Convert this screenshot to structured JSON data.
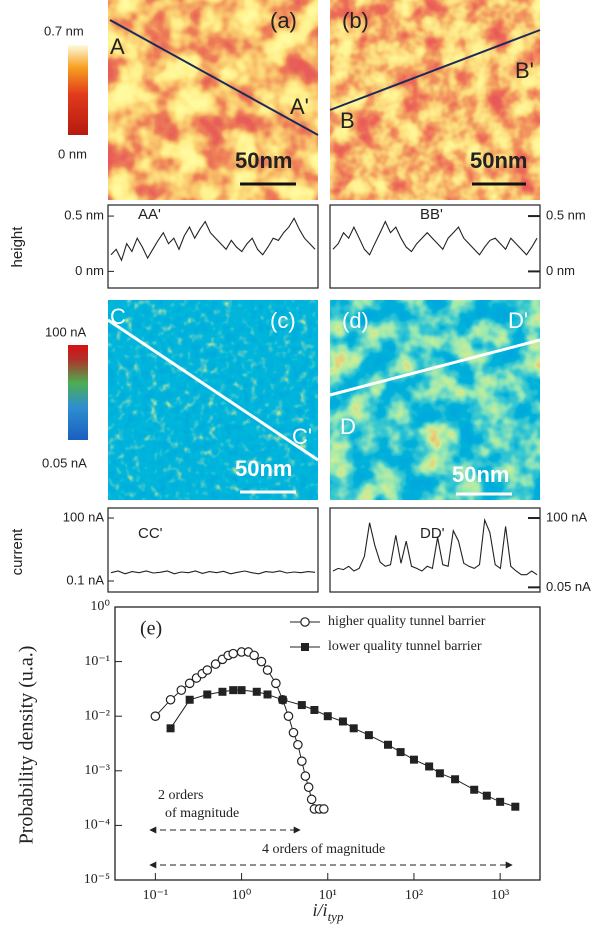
{
  "panels": [
    {
      "label": "(a)",
      "points": [
        "A",
        "A'"
      ],
      "scale": "50nm"
    },
    {
      "label": "(b)",
      "points": [
        "B",
        "B'"
      ],
      "scale": "50nm"
    },
    {
      "label": "(c)",
      "points": [
        "C",
        "C'"
      ],
      "scale": "50nm"
    },
    {
      "label": "(d)",
      "points": [
        "D",
        "D'"
      ],
      "scale": "50nm"
    }
  ],
  "colorbars": [
    {
      "max": "0.7 nm",
      "min": "0 nm"
    },
    {
      "max": "100 nA",
      "min": "0.05 nA"
    }
  ],
  "axis_labels": [
    "height",
    "current"
  ],
  "profiles": [
    {
      "label": "AA'",
      "log": false,
      "ylim": [
        -0.15,
        0.6
      ],
      "yticks": [
        {
          "value": 0.5,
          "label": "0.5 nm"
        },
        {
          "value": 0,
          "label": "0 nm"
        }
      ],
      "values": [
        0.15,
        0.2,
        0.1,
        0.25,
        0.18,
        0.3,
        0.22,
        0.12,
        0.2,
        0.28,
        0.35,
        0.25,
        0.3,
        0.2,
        0.32,
        0.4,
        0.3,
        0.38,
        0.45,
        0.35,
        0.3,
        0.25,
        0.2,
        0.28,
        0.22,
        0.18,
        0.25,
        0.3,
        0.2,
        0.15,
        0.22,
        0.3,
        0.28,
        0.35,
        0.4,
        0.48,
        0.38,
        0.3,
        0.25,
        0.2
      ]
    },
    {
      "label": "BB'",
      "log": false,
      "ylim": [
        -0.15,
        0.6
      ],
      "yticks": [
        {
          "value": 0.5,
          "label": "0.5 nm"
        },
        {
          "value": 0,
          "label": "0 nm"
        }
      ],
      "values": [
        0.2,
        0.25,
        0.35,
        0.3,
        0.4,
        0.3,
        0.2,
        0.15,
        0.25,
        0.35,
        0.45,
        0.35,
        0.4,
        0.3,
        0.22,
        0.18,
        0.25,
        0.3,
        0.35,
        0.3,
        0.25,
        0.2,
        0.3,
        0.35,
        0.4,
        0.3,
        0.25,
        0.2,
        0.15,
        0.22,
        0.28,
        0.3,
        0.25,
        0.2,
        0.3,
        0.25,
        0.2,
        0.15,
        0.22,
        0.3
      ]
    },
    {
      "label": "CC'",
      "log": true,
      "ylim": [
        0.03,
        300
      ],
      "yticks": [
        {
          "value": 100,
          "label": "100 nA"
        },
        {
          "value": 0.1,
          "label": "0.1 nA"
        }
      ],
      "values": [
        0.25,
        0.3,
        0.22,
        0.28,
        0.25,
        0.3,
        0.24,
        0.26,
        0.3,
        0.22,
        0.27,
        0.25,
        0.3,
        0.23,
        0.28,
        0.25,
        0.29,
        0.22,
        0.26,
        0.3,
        0.25,
        0.22,
        0.28,
        0.26,
        0.3,
        0.24,
        0.27,
        0.25,
        0.28,
        0.26
      ]
    },
    {
      "label": "DD'",
      "log": true,
      "ylim": [
        0.03,
        300
      ],
      "yticks": [
        {
          "value": 100,
          "label": "100 nA"
        },
        {
          "value": 0.05,
          "label": "0.05 nA"
        }
      ],
      "values": [
        0.3,
        0.4,
        0.35,
        0.5,
        0.3,
        0.4,
        1.5,
        60,
        5,
        0.8,
        0.5,
        0.6,
        15,
        0.7,
        8,
        0.5,
        0.4,
        0.3,
        0.5,
        0.4,
        12,
        0.6,
        0.5,
        25,
        8,
        0.7,
        0.5,
        0.4,
        0.6,
        80,
        20,
        0.6,
        0.4,
        40,
        0.5,
        0.3,
        0.2,
        0.2,
        0.3,
        0.2
      ]
    }
  ],
  "chart_data": {
    "type": "scatter",
    "panel_label": "(e)",
    "ylabel": "Probability density (u.a.)",
    "xlabel": "i/i",
    "xlabel_sub": "typ",
    "xlog": true,
    "ylog": true,
    "xlim": [
      0.034,
      2900
    ],
    "ylim": [
      1e-05,
      1
    ],
    "xticks": [
      {
        "value": 0.1,
        "label": "10⁻¹"
      },
      {
        "value": 1,
        "label": "10⁰"
      },
      {
        "value": 10,
        "label": "10¹"
      },
      {
        "value": 100,
        "label": "10²"
      },
      {
        "value": 1000,
        "label": "10³"
      }
    ],
    "yticks": [
      {
        "value": 1e-05,
        "label": "10⁻⁵"
      },
      {
        "value": 0.0001,
        "label": "10⁻⁴"
      },
      {
        "value": 0.001,
        "label": "10⁻³"
      },
      {
        "value": 0.01,
        "label": "10⁻²"
      },
      {
        "value": 0.1,
        "label": "10⁻¹"
      },
      {
        "value": 1,
        "label": "10⁰"
      }
    ],
    "legend": "upper right",
    "series": [
      {
        "name": "higher quality tunnel barrier",
        "marker": "open-circle",
        "color": "#222222",
        "x": [
          0.1,
          0.15,
          0.2,
          0.25,
          0.3,
          0.35,
          0.4,
          0.5,
          0.6,
          0.7,
          0.8,
          1,
          1.2,
          1.4,
          1.7,
          2,
          2.5,
          3,
          3.5,
          4,
          4.5,
          5,
          5.5,
          6,
          6.5,
          7,
          8,
          9
        ],
        "values": [
          0.01,
          0.02,
          0.03,
          0.04,
          0.05,
          0.06,
          0.07,
          0.09,
          0.11,
          0.13,
          0.14,
          0.15,
          0.15,
          0.13,
          0.1,
          0.07,
          0.04,
          0.02,
          0.01,
          0.005,
          0.003,
          0.0015,
          0.0008,
          0.0005,
          0.0003,
          0.0002,
          0.0002,
          0.0002
        ]
      },
      {
        "name": "lower quality tunnel barrier",
        "marker": "filled-square",
        "color": "#222222",
        "x": [
          0.15,
          0.25,
          0.4,
          0.6,
          0.8,
          1,
          1.5,
          2,
          3,
          5,
          7,
          10,
          15,
          20,
          30,
          50,
          70,
          100,
          150,
          200,
          300,
          500,
          700,
          1000,
          1500
        ],
        "values": [
          0.006,
          0.02,
          0.025,
          0.028,
          0.03,
          0.03,
          0.028,
          0.025,
          0.02,
          0.016,
          0.013,
          0.01,
          0.008,
          0.006,
          0.0045,
          0.003,
          0.0022,
          0.0016,
          0.0012,
          0.0009,
          0.0007,
          0.00045,
          0.00035,
          0.00027,
          0.00022
        ]
      }
    ],
    "annotations": [
      "2 orders",
      "of magnitude",
      "4 orders of magnitude"
    ]
  }
}
